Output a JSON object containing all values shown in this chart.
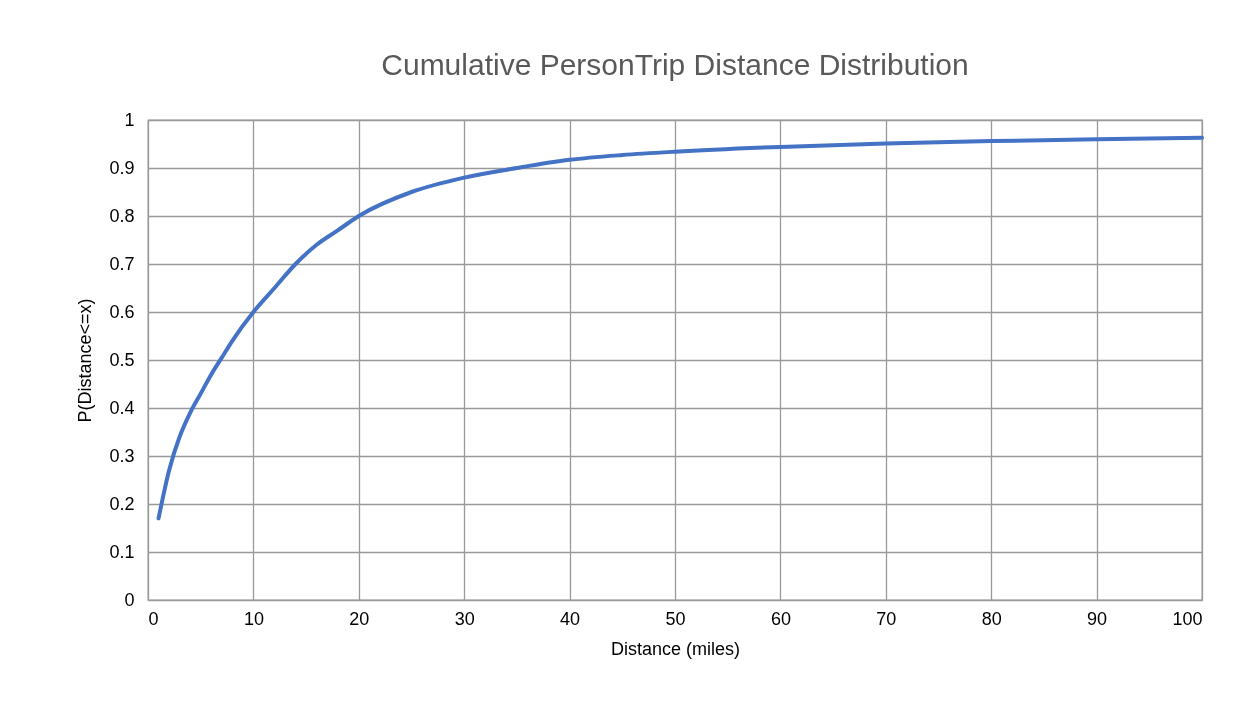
{
  "chart_data": {
    "type": "line",
    "title": "Cumulative PersonTrip Distance Distribution",
    "xlabel": "Distance (miles)",
    "ylabel": "P(Distance<=x)",
    "x": [
      1,
      2,
      3,
      4,
      5,
      6,
      7,
      8,
      10,
      12,
      14,
      16,
      18,
      20,
      25,
      30,
      35,
      40,
      45,
      50,
      60,
      70,
      80,
      90,
      100
    ],
    "series": [
      {
        "color": "#4472c4",
        "values": [
          0.17,
          0.27,
          0.34,
          0.39,
          0.43,
          0.47,
          0.505,
          0.54,
          0.6,
          0.65,
          0.7,
          0.74,
          0.77,
          0.8,
          0.85,
          0.88,
          0.9,
          0.917,
          0.927,
          0.934,
          0.944,
          0.951,
          0.956,
          0.96,
          0.963
        ]
      }
    ],
    "xlim": [
      0,
      100
    ],
    "xticks": [
      0,
      10,
      20,
      30,
      40,
      50,
      60,
      70,
      80,
      90,
      100
    ],
    "ylim": [
      0,
      1
    ],
    "yticks": [
      0,
      0.1,
      0.2,
      0.3,
      0.4,
      0.5,
      0.6,
      0.7,
      0.8,
      0.9,
      1
    ],
    "grid": true,
    "marker": "none",
    "line_style": "solid"
  }
}
